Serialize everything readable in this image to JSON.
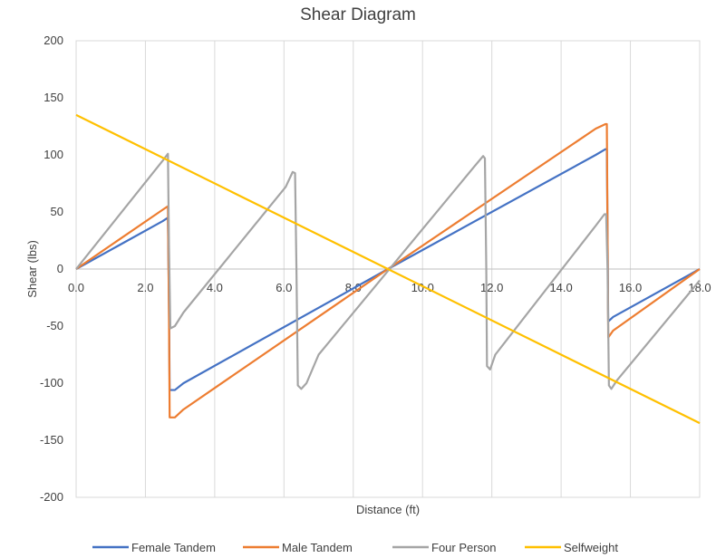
{
  "chart_data": {
    "type": "line",
    "title": "Shear Diagram",
    "xlabel": "Distance (ft)",
    "ylabel": "Shear (lbs)",
    "xlim": [
      0,
      18
    ],
    "ylim": [
      -200,
      200
    ],
    "x_ticks": [
      0,
      2,
      4,
      6,
      8,
      10,
      12,
      14,
      16,
      18
    ],
    "x_tick_labels": [
      "0.0",
      "2.0",
      "4.0",
      "6.0",
      "8.0",
      "10.0",
      "12.0",
      "14.0",
      "16.0",
      "18.0"
    ],
    "y_ticks": [
      -200,
      -150,
      -100,
      -50,
      0,
      50,
      100,
      150,
      200
    ],
    "y_tick_labels": [
      "-200",
      "-150",
      "-100",
      "-50",
      "0",
      "50",
      "100",
      "150",
      "200"
    ],
    "grid": "vertical",
    "legend_position": "bottom",
    "series": [
      {
        "name": "Female Tandem",
        "color": "#4472C4",
        "points": [
          [
            0,
            0
          ],
          [
            2.5,
            42
          ],
          [
            2.65,
            45
          ],
          [
            2.68,
            -30
          ],
          [
            2.7,
            -106
          ],
          [
            2.85,
            -106
          ],
          [
            3.1,
            -100
          ],
          [
            9.0,
            0
          ],
          [
            15.0,
            100
          ],
          [
            15.28,
            105
          ],
          [
            15.32,
            105
          ],
          [
            15.36,
            -46
          ],
          [
            15.5,
            -42
          ],
          [
            18.0,
            0
          ]
        ]
      },
      {
        "name": "Male Tandem",
        "color": "#ED7D31",
        "points": [
          [
            0,
            0
          ],
          [
            2.5,
            52
          ],
          [
            2.65,
            55
          ],
          [
            2.68,
            -40
          ],
          [
            2.7,
            -130
          ],
          [
            2.85,
            -130
          ],
          [
            3.1,
            -123
          ],
          [
            9.0,
            0
          ],
          [
            15.0,
            123
          ],
          [
            15.28,
            127
          ],
          [
            15.32,
            127
          ],
          [
            15.36,
            -60
          ],
          [
            15.5,
            -54
          ],
          [
            18.0,
            0
          ]
        ]
      },
      {
        "name": "Four Person",
        "color": "#A5A5A5",
        "points": [
          [
            0,
            0
          ],
          [
            2.5,
            95
          ],
          [
            2.65,
            101
          ],
          [
            2.68,
            20
          ],
          [
            2.72,
            -52
          ],
          [
            2.85,
            -50
          ],
          [
            3.1,
            -38
          ],
          [
            6.05,
            72
          ],
          [
            6.25,
            85
          ],
          [
            6.32,
            84
          ],
          [
            6.36,
            0
          ],
          [
            6.4,
            -102
          ],
          [
            6.5,
            -105
          ],
          [
            6.65,
            -100
          ],
          [
            7.0,
            -75
          ],
          [
            11.5,
            90
          ],
          [
            11.75,
            99
          ],
          [
            11.8,
            97
          ],
          [
            11.84,
            0
          ],
          [
            11.86,
            -85
          ],
          [
            11.95,
            -88
          ],
          [
            12.1,
            -75
          ],
          [
            15.0,
            38
          ],
          [
            15.25,
            48
          ],
          [
            15.3,
            48
          ],
          [
            15.34,
            0
          ],
          [
            15.38,
            -102
          ],
          [
            15.45,
            -105
          ],
          [
            15.6,
            -98
          ],
          [
            18.0,
            -10
          ]
        ]
      },
      {
        "name": "Selfweight",
        "color": "#FFC000",
        "points": [
          [
            0,
            135
          ],
          [
            18,
            -135
          ]
        ]
      }
    ]
  }
}
